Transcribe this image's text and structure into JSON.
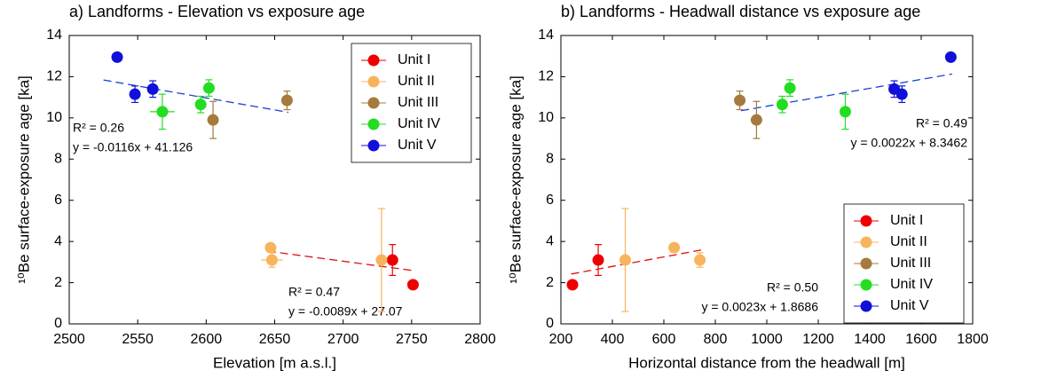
{
  "chart_data": [
    {
      "type": "scatter",
      "title": "a) Landforms - Elevation vs exposure age",
      "x_label": "Elevation [m a.s.l.]",
      "y_label": "¹⁰Be surface-exposure age [ka]",
      "xlim": [
        2500,
        2800
      ],
      "xticks": [
        2500,
        2550,
        2600,
        2650,
        2700,
        2750,
        2800
      ],
      "ylim": [
        0,
        14
      ],
      "yticks": [
        0,
        2,
        4,
        6,
        8,
        10,
        12,
        14
      ],
      "legend": "upper right",
      "series": [
        {
          "name": "Unit I",
          "color": "#ee0000",
          "x": [
            2736,
            2751
          ],
          "values": [
            3.1,
            1.9
          ],
          "yerr": [
            0.75,
            0.15
          ],
          "xerr": [
            3,
            2
          ]
        },
        {
          "name": "Unit II",
          "color": "#f8b45c",
          "x": [
            2647,
            2648,
            2728
          ],
          "values": [
            3.7,
            3.1,
            3.1
          ],
          "yerr": [
            0.15,
            0.35,
            2.5
          ],
          "xerr": [
            2,
            8,
            3
          ]
        },
        {
          "name": "Unit III",
          "color": "#a67a3c",
          "x": [
            2605,
            2659
          ],
          "values": [
            9.9,
            10.85
          ],
          "yerr": [
            0.9,
            0.45
          ],
          "xerr": [
            2,
            3
          ]
        },
        {
          "name": "Unit IV",
          "color": "#22dd22",
          "x": [
            2568,
            2596,
            2602
          ],
          "values": [
            10.3,
            10.65,
            11.45
          ],
          "yerr": [
            0.85,
            0.4,
            0.4
          ],
          "xerr": [
            9,
            3,
            3
          ]
        },
        {
          "name": "Unit V",
          "color": "#1010d8",
          "x": [
            2535,
            2548,
            2561
          ],
          "values": [
            12.95,
            11.15,
            11.4
          ],
          "yerr": [
            0.15,
            0.4,
            0.4
          ],
          "xerr": [
            3,
            3,
            3
          ]
        }
      ],
      "trendlines": [
        {
          "color": "#1a3fd8",
          "x": [
            2525,
            2660
          ],
          "y": [
            11.84,
            10.27
          ],
          "labels": [
            "R² = 0.26",
            "y = -0.0116x + 41.126"
          ]
        },
        {
          "color": "#dd1111",
          "x": [
            2645,
            2752
          ],
          "y": [
            3.53,
            2.58
          ],
          "labels": [
            "R² = 0.47",
            "y = -0.0089x + 27.07"
          ]
        }
      ]
    },
    {
      "type": "scatter",
      "title": "b) Landforms - Headwall distance vs exposure age",
      "x_label": "Horizontal distance from the headwall [m]",
      "y_label": "¹⁰Be surface-exposure age [ka]",
      "xlim": [
        200,
        1800
      ],
      "xticks": [
        200,
        400,
        600,
        800,
        1000,
        1200,
        1400,
        1600,
        1800
      ],
      "ylim": [
        0,
        14
      ],
      "yticks": [
        0,
        2,
        4,
        6,
        8,
        10,
        12,
        14
      ],
      "legend": "lower right",
      "series": [
        {
          "name": "Unit I",
          "color": "#ee0000",
          "x": [
            245,
            345
          ],
          "values": [
            1.9,
            3.1
          ],
          "yerr": [
            0.15,
            0.75
          ],
          "xerr": [
            8,
            10
          ]
        },
        {
          "name": "Unit II",
          "color": "#f8b45c",
          "x": [
            450,
            640,
            740
          ],
          "values": [
            3.1,
            3.7,
            3.1
          ],
          "yerr": [
            2.5,
            0.15,
            0.35
          ],
          "xerr": [
            12,
            10,
            10
          ]
        },
        {
          "name": "Unit III",
          "color": "#a67a3c",
          "x": [
            895,
            960
          ],
          "values": [
            10.85,
            9.9
          ],
          "yerr": [
            0.45,
            0.9
          ],
          "xerr": [
            8,
            8
          ]
        },
        {
          "name": "Unit IV",
          "color": "#22dd22",
          "x": [
            1060,
            1090,
            1305
          ],
          "values": [
            10.65,
            11.45,
            10.3
          ],
          "yerr": [
            0.4,
            0.4,
            0.85
          ],
          "xerr": [
            10,
            10,
            12
          ]
        },
        {
          "name": "Unit V",
          "color": "#1010d8",
          "x": [
            1495,
            1525,
            1715
          ],
          "values": [
            11.4,
            11.15,
            12.95
          ],
          "yerr": [
            0.4,
            0.4,
            0.15
          ],
          "xerr": [
            10,
            10,
            10
          ]
        }
      ],
      "trendlines": [
        {
          "color": "#1a3fd8",
          "x": [
            900,
            1720
          ],
          "y": [
            10.35,
            12.13
          ],
          "labels": [
            "R² = 0.49",
            "y = 0.0022x + 8.3462"
          ]
        },
        {
          "color": "#dd1111",
          "x": [
            240,
            760
          ],
          "y": [
            2.42,
            3.62
          ],
          "labels": [
            "R² = 0.50",
            "y = 0.0023x + 1.8686"
          ]
        }
      ]
    }
  ]
}
